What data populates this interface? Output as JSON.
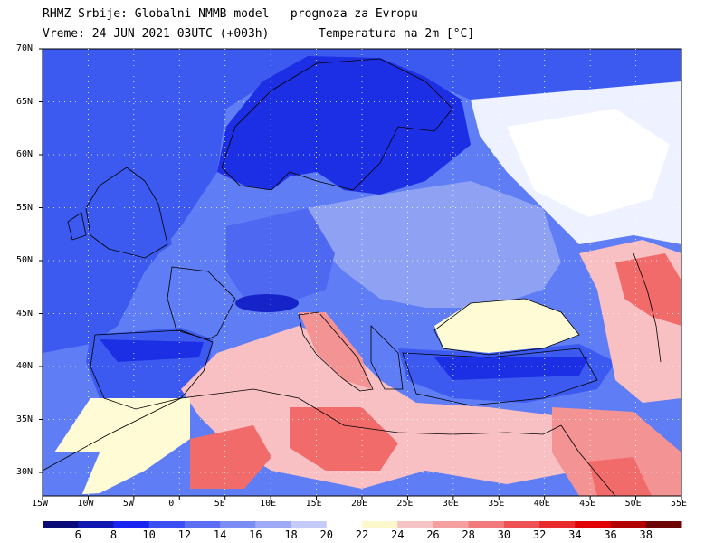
{
  "header": {
    "line1": "RHMZ Srbije: Globalni NMMB model — prognoza za Evropu",
    "line2_left": "Vreme: 24 JUN 2021 03UTC (+003h)",
    "line2_right": "Temperatura na 2m [°C]"
  },
  "map": {
    "lon_range": [
      -15,
      55
    ],
    "lat_range": [
      28,
      70
    ],
    "lat_ticks": [
      "70N",
      "65N",
      "60N",
      "55N",
      "50N",
      "45N",
      "40N",
      "35N",
      "30N"
    ],
    "lon_ticks": [
      "15W",
      "10W",
      "5W",
      "0",
      "5E",
      "10E",
      "15E",
      "20E",
      "25E",
      "30E",
      "35E",
      "40E",
      "45E",
      "50E",
      "55E"
    ],
    "colors": {
      "sea_bg": "#5f7df4",
      "deep_blue": "#0d1fd6",
      "mid_blue": "#3c5af0",
      "light_blue": "#8ea1f2",
      "pale_blue": "#b9c3f7",
      "white": "#ffffff",
      "cream": "#fffbd4",
      "pink": "#f8c0c2",
      "salmon": "#f39394",
      "red": "#f16b6b"
    }
  },
  "colorbar": {
    "colors": [
      "#0b0b77",
      "#1216b0",
      "#1a24f0",
      "#3b4ff2",
      "#5c6ef4",
      "#7c8cf5",
      "#9faaf7",
      "#c4cbf9",
      "#ffffff",
      "#fbf8cc",
      "#f7c4c5",
      "#f59fa1",
      "#f27a7c",
      "#ef5255",
      "#e92b2e",
      "#e00005",
      "#b30000",
      "#6e0505"
    ],
    "labels": [
      "6",
      "8",
      "10",
      "12",
      "14",
      "16",
      "18",
      "20",
      "22",
      "24",
      "26",
      "28",
      "30",
      "32",
      "34",
      "36",
      "38"
    ]
  }
}
